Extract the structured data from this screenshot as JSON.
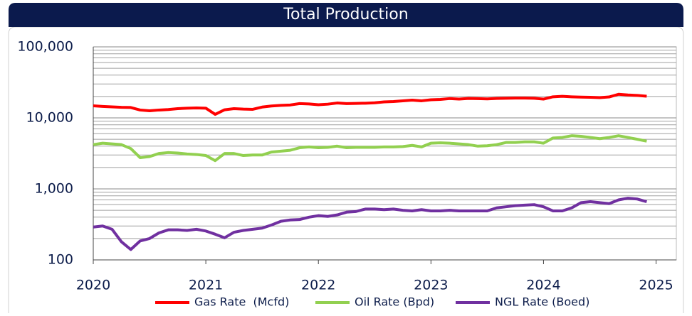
{
  "chart_data": {
    "type": "line",
    "title": "Total Production",
    "log_scale": true,
    "grid": true,
    "legend": "bottom",
    "x": [
      2020,
      2020.0833,
      2020.1667,
      2020.25,
      2020.3333,
      2020.4167,
      2020.5,
      2020.5833,
      2020.6667,
      2020.75,
      2020.8333,
      2020.9167,
      2021,
      2021.0833,
      2021.1667,
      2021.25,
      2021.3333,
      2021.4167,
      2021.5,
      2021.5833,
      2021.6667,
      2021.75,
      2021.8333,
      2021.9167,
      2022,
      2022.0833,
      2022.1667,
      2022.25,
      2022.3333,
      2022.4167,
      2022.5,
      2022.5833,
      2022.6667,
      2022.75,
      2022.8333,
      2022.9167,
      2023,
      2023.0833,
      2023.1667,
      2023.25,
      2023.3333,
      2023.4167,
      2023.5,
      2023.5833,
      2023.6667,
      2023.75,
      2023.8333,
      2023.9167,
      2024,
      2024.0833,
      2024.1667,
      2024.25,
      2024.3333,
      2024.4167,
      2024.5,
      2024.5833,
      2024.6667,
      2024.75,
      2024.8333,
      2024.9167
    ],
    "series": [
      {
        "name": "Gas Rate  (Mcfd)",
        "color": "#ff0000",
        "values": [
          14800,
          14500,
          14300,
          14100,
          14000,
          12900,
          12600,
          12900,
          13100,
          13500,
          13700,
          13800,
          13700,
          11200,
          13000,
          13500,
          13300,
          13200,
          14200,
          14700,
          15000,
          15200,
          15900,
          15700,
          15300,
          15600,
          16200,
          15900,
          16000,
          16100,
          16300,
          16800,
          17000,
          17400,
          17800,
          17400,
          18000,
          18200,
          18700,
          18400,
          18800,
          18700,
          18500,
          18800,
          18900,
          19000,
          19000,
          18900,
          18400,
          19800,
          20100,
          19800,
          19600,
          19500,
          19300,
          19700,
          21500,
          21000,
          20700,
          20200
        ]
      },
      {
        "name": "Oil Rate (Bpd)",
        "color": "#92d050",
        "values": [
          4200,
          4400,
          4300,
          4200,
          3700,
          2750,
          2850,
          3150,
          3250,
          3200,
          3100,
          3050,
          2950,
          2500,
          3150,
          3150,
          2950,
          3000,
          3000,
          3300,
          3400,
          3500,
          3800,
          3900,
          3800,
          3850,
          4000,
          3800,
          3850,
          3850,
          3850,
          3900,
          3900,
          3950,
          4100,
          3900,
          4400,
          4450,
          4400,
          4300,
          4200,
          4000,
          4050,
          4200,
          4500,
          4500,
          4600,
          4600,
          4400,
          5200,
          5300,
          5600,
          5500,
          5300,
          5100,
          5300,
          5600,
          5300,
          5000,
          4700
        ]
      },
      {
        "name": "NGL Rate (Boed)",
        "color": "#7030a0",
        "values": [
          290,
          300,
          270,
          180,
          140,
          185,
          200,
          240,
          265,
          265,
          260,
          270,
          255,
          230,
          205,
          245,
          260,
          270,
          280,
          310,
          350,
          365,
          370,
          400,
          420,
          410,
          430,
          470,
          480,
          520,
          520,
          510,
          520,
          500,
          490,
          510,
          490,
          490,
          500,
          490,
          490,
          490,
          490,
          540,
          560,
          580,
          590,
          600,
          560,
          490,
          490,
          540,
          640,
          660,
          640,
          620,
          700,
          740,
          720,
          660
        ]
      }
    ],
    "xlim": [
      2020,
      2025.18
    ],
    "xticks": [
      2020,
      2021,
      2022,
      2023,
      2024,
      2025
    ],
    "ylim": [
      100,
      100000
    ],
    "yticks": [
      {
        "value": 100,
        "label": "100"
      },
      {
        "value": 1000,
        "label": "1,000"
      },
      {
        "value": 10000,
        "label": "10,000"
      },
      {
        "value": 100000,
        "label": "100,000"
      }
    ]
  }
}
